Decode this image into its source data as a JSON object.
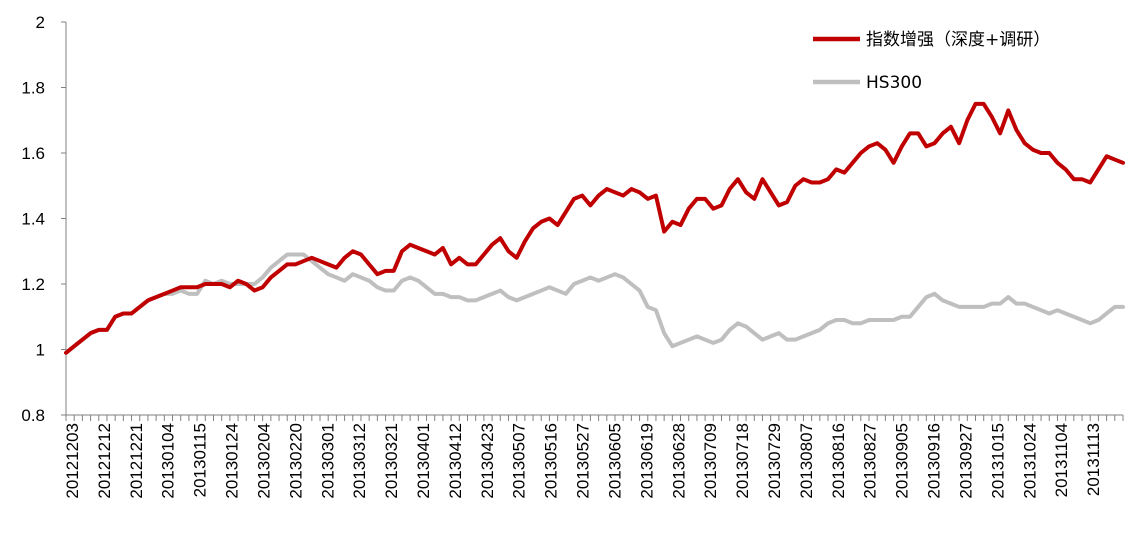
{
  "chart_data": {
    "type": "line",
    "title": "",
    "xlabel": "",
    "ylabel": "",
    "ylim": [
      0.8,
      2.0
    ],
    "yticks": [
      "0.8",
      "1",
      "1.2",
      "1.4",
      "1.6",
      "1.8",
      "2"
    ],
    "grid": false,
    "legend_position": "top-right",
    "x_tick_labels": [
      "20121203",
      "20121212",
      "20121221",
      "20130104",
      "20130115",
      "20130124",
      "20130204",
      "20130220",
      "20130301",
      "20130312",
      "20130321",
      "20130401",
      "20130412",
      "20130423",
      "20130507",
      "20130516",
      "20130527",
      "20130605",
      "20130619",
      "20130628",
      "20130709",
      "20130718",
      "20130729",
      "20130807",
      "20130816",
      "20130827",
      "20130905",
      "20130916",
      "20130927",
      "20131015",
      "20131024",
      "20131104",
      "20131113"
    ],
    "series": [
      {
        "name": "指数增强（深度+调研）",
        "color": "#c00000",
        "values": [
          0.99,
          1.01,
          1.03,
          1.05,
          1.06,
          1.06,
          1.1,
          1.11,
          1.11,
          1.13,
          1.15,
          1.16,
          1.17,
          1.18,
          1.19,
          1.19,
          1.19,
          1.2,
          1.2,
          1.2,
          1.19,
          1.21,
          1.2,
          1.18,
          1.19,
          1.22,
          1.24,
          1.26,
          1.26,
          1.27,
          1.28,
          1.27,
          1.26,
          1.25,
          1.28,
          1.3,
          1.29,
          1.26,
          1.23,
          1.24,
          1.24,
          1.3,
          1.32,
          1.31,
          1.3,
          1.29,
          1.31,
          1.26,
          1.28,
          1.26,
          1.26,
          1.29,
          1.32,
          1.34,
          1.3,
          1.28,
          1.33,
          1.37,
          1.39,
          1.4,
          1.38,
          1.42,
          1.46,
          1.47,
          1.44,
          1.47,
          1.49,
          1.48,
          1.47,
          1.49,
          1.48,
          1.46,
          1.47,
          1.36,
          1.39,
          1.38,
          1.43,
          1.46,
          1.46,
          1.43,
          1.44,
          1.49,
          1.52,
          1.48,
          1.46,
          1.52,
          1.48,
          1.44,
          1.45,
          1.5,
          1.52,
          1.51,
          1.51,
          1.52,
          1.55,
          1.54,
          1.57,
          1.6,
          1.62,
          1.63,
          1.61,
          1.57,
          1.62,
          1.66,
          1.66,
          1.62,
          1.63,
          1.66,
          1.68,
          1.63,
          1.7,
          1.75,
          1.75,
          1.71,
          1.66,
          1.73,
          1.67,
          1.63,
          1.61,
          1.6,
          1.6,
          1.57,
          1.55,
          1.52,
          1.52,
          1.51,
          1.55,
          1.59,
          1.58,
          1.57
        ]
      },
      {
        "name": "HS300",
        "color": "#bfbfbf",
        "values": [
          0.99,
          1.01,
          1.03,
          1.05,
          1.06,
          1.06,
          1.1,
          1.11,
          1.11,
          1.13,
          1.15,
          1.16,
          1.17,
          1.17,
          1.18,
          1.17,
          1.17,
          1.21,
          1.2,
          1.21,
          1.2,
          1.2,
          1.2,
          1.2,
          1.22,
          1.25,
          1.27,
          1.29,
          1.29,
          1.29,
          1.27,
          1.25,
          1.23,
          1.22,
          1.21,
          1.23,
          1.22,
          1.21,
          1.19,
          1.18,
          1.18,
          1.21,
          1.22,
          1.21,
          1.19,
          1.17,
          1.17,
          1.16,
          1.16,
          1.15,
          1.15,
          1.16,
          1.17,
          1.18,
          1.16,
          1.15,
          1.16,
          1.17,
          1.18,
          1.19,
          1.18,
          1.17,
          1.2,
          1.21,
          1.22,
          1.21,
          1.22,
          1.23,
          1.22,
          1.2,
          1.18,
          1.13,
          1.12,
          1.05,
          1.01,
          1.02,
          1.03,
          1.04,
          1.03,
          1.02,
          1.03,
          1.06,
          1.08,
          1.07,
          1.05,
          1.03,
          1.04,
          1.05,
          1.03,
          1.03,
          1.04,
          1.05,
          1.06,
          1.08,
          1.09,
          1.09,
          1.08,
          1.08,
          1.09,
          1.09,
          1.09,
          1.09,
          1.1,
          1.1,
          1.13,
          1.16,
          1.17,
          1.15,
          1.14,
          1.13,
          1.13,
          1.13,
          1.13,
          1.14,
          1.14,
          1.16,
          1.14,
          1.14,
          1.13,
          1.12,
          1.11,
          1.12,
          1.11,
          1.1,
          1.09,
          1.08,
          1.09,
          1.11,
          1.13,
          1.13
        ]
      }
    ]
  }
}
